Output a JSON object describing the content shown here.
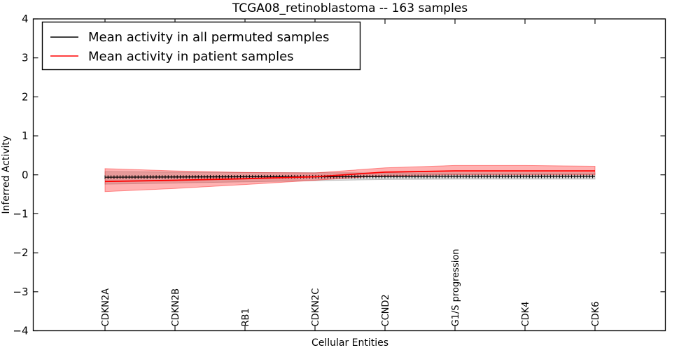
{
  "title": "TCGA08_retinoblastoma -- 163 samples",
  "axes": {
    "xlabel": "Cellular Entities",
    "ylabel": "Inferred Activity"
  },
  "legend": {
    "position": "upper left",
    "entries": [
      {
        "label": "Mean activity in all permuted samples",
        "color": "#000000"
      },
      {
        "label": "Mean activity in patient samples",
        "color": "#ff0000"
      }
    ]
  },
  "chart_data": {
    "type": "line",
    "title": "TCGA08_retinoblastoma -- 163 samples",
    "xlabel": "Cellular Entities",
    "ylabel": "Inferred Activity",
    "ylim": [
      -4,
      4
    ],
    "yticks": [
      -4,
      -3,
      -2,
      -1,
      0,
      1,
      2,
      3,
      4
    ],
    "grid": false,
    "x_tick_rotation": 90,
    "legend_position": "upper left",
    "categories": [
      "CDKN2A",
      "CDKN2B",
      "RB1",
      "CDKN2C",
      "CCND2",
      "G1/S progression",
      "CDK4",
      "CDK6"
    ],
    "series": [
      {
        "name": "Mean activity in all permuted samples",
        "color": "#000000",
        "line_width": 1.3,
        "marker": "tick-comb",
        "band_fill": "rgba(120,120,120,0.25)",
        "band_edge": "rgba(120,120,120,0.4)",
        "values": [
          -0.06,
          -0.055,
          -0.05,
          -0.05,
          -0.045,
          -0.04,
          -0.04,
          -0.04
        ],
        "band_upper": [
          0.08,
          0.07,
          0.06,
          0.055,
          0.05,
          0.05,
          0.05,
          0.05
        ],
        "band_lower": [
          -0.24,
          -0.21,
          -0.18,
          -0.15,
          -0.12,
          -0.11,
          -0.11,
          -0.11
        ]
      },
      {
        "name": "Mean activity in patient samples",
        "color": "#ff0000",
        "line_width": 1.8,
        "marker": "none",
        "band_fill": "rgba(255,0,0,0.30)",
        "band_edge": "rgba(255,0,0,0.4)",
        "values": [
          -0.17,
          -0.14,
          -0.1,
          -0.05,
          0.07,
          0.1,
          0.1,
          0.1
        ],
        "band_upper": [
          0.16,
          0.1,
          0.06,
          0.05,
          0.18,
          0.24,
          0.24,
          0.22
        ],
        "band_lower": [
          -0.43,
          -0.35,
          -0.25,
          -0.14,
          -0.02,
          0.0,
          0.0,
          0.0
        ]
      }
    ]
  }
}
